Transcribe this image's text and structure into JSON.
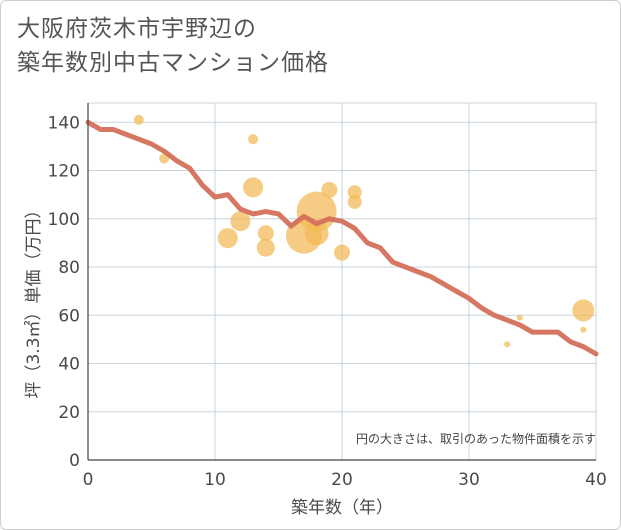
{
  "title": {
    "line1": "大阪府茨木市宇野辺の",
    "line2": "築年数別中古マンション価格"
  },
  "chart_data": {
    "type": "scatter",
    "xlabel": "築年数（年）",
    "ylabel": "坪（3.3㎡）単価（万円）",
    "xlim": [
      0,
      40
    ],
    "ylim": [
      0,
      148
    ],
    "xticks": [
      0,
      10,
      20,
      30,
      40
    ],
    "yticks": [
      0,
      20,
      40,
      60,
      80,
      100,
      120,
      140
    ],
    "grid": true,
    "note": "円の大きさは、取引のあった物件面積を示す",
    "colors": {
      "bubble": "#f2b855",
      "line": "#d4705c"
    },
    "bubbles": [
      {
        "x": 4,
        "y": 141,
        "size": 5
      },
      {
        "x": 6,
        "y": 125,
        "size": 5
      },
      {
        "x": 13,
        "y": 133,
        "size": 5
      },
      {
        "x": 13,
        "y": 113,
        "size": 10
      },
      {
        "x": 19,
        "y": 112,
        "size": 8
      },
      {
        "x": 21,
        "y": 111,
        "size": 7
      },
      {
        "x": 21,
        "y": 107,
        "size": 7
      },
      {
        "x": 12,
        "y": 99,
        "size": 10
      },
      {
        "x": 18,
        "y": 103,
        "size": 20
      },
      {
        "x": 11,
        "y": 92,
        "size": 10
      },
      {
        "x": 14,
        "y": 94,
        "size": 8
      },
      {
        "x": 17,
        "y": 93,
        "size": 18
      },
      {
        "x": 18,
        "y": 94,
        "size": 12
      },
      {
        "x": 14,
        "y": 88,
        "size": 9
      },
      {
        "x": 20,
        "y": 86,
        "size": 8
      },
      {
        "x": 33,
        "y": 48,
        "size": 3
      },
      {
        "x": 34,
        "y": 59,
        "size": 3
      },
      {
        "x": 39,
        "y": 62,
        "size": 11
      },
      {
        "x": 39,
        "y": 54,
        "size": 3
      }
    ],
    "trend": {
      "x": [
        0,
        1,
        2,
        3,
        4,
        5,
        6,
        7,
        8,
        9,
        10,
        11,
        12,
        13,
        14,
        15,
        16,
        17,
        18,
        19,
        20,
        21,
        22,
        23,
        24,
        25,
        26,
        27,
        28,
        29,
        30,
        31,
        32,
        33,
        34,
        35,
        36,
        37,
        38,
        39,
        40
      ],
      "y": [
        140,
        137,
        137,
        135,
        133,
        131,
        128,
        124,
        121,
        114,
        109,
        110,
        104,
        102,
        103,
        102,
        97,
        101,
        98,
        100,
        99,
        96,
        90,
        88,
        82,
        80,
        78,
        76,
        73,
        70,
        67,
        63,
        60,
        58,
        56,
        53,
        53,
        53,
        49,
        47,
        44
      ]
    }
  }
}
